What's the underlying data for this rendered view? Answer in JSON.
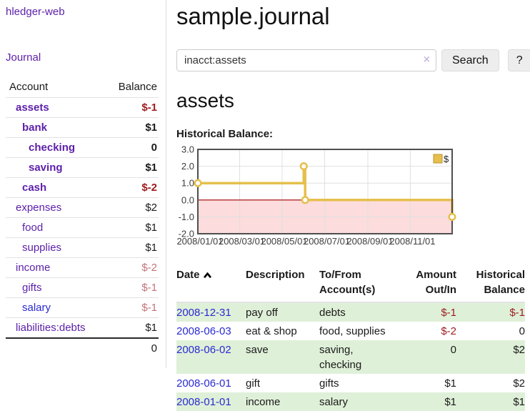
{
  "colors": {
    "link_purple": "#5c1fa9",
    "link_blue": "#2a2ad2",
    "negative_strong": "#9d1d20",
    "negative_soft": "#c2737a",
    "row_stripe_green": "#dff0d8",
    "chart_line": "#e6bf4d",
    "chart_negative_region": "#fcdcdc",
    "chart_zero_line": "#a40000",
    "chart_grid": "#e0e0e0",
    "chart_border": "#4f4f4f"
  },
  "icons": {
    "clear": "×",
    "sort_ascending": "chevron-up"
  },
  "sidebar": {
    "brand": "hledger-web",
    "nav_journal": "Journal",
    "header": {
      "account": "Account",
      "balance": "Balance"
    },
    "accounts": [
      {
        "name": "assets",
        "balance": "$-1"
      },
      {
        "name": "bank",
        "balance": "$1"
      },
      {
        "name": "checking",
        "balance": "0"
      },
      {
        "name": "saving",
        "balance": "$1"
      },
      {
        "name": "cash",
        "balance": "$-2"
      },
      {
        "name": "expenses",
        "balance": "$2"
      },
      {
        "name": "food",
        "balance": "$1"
      },
      {
        "name": "supplies",
        "balance": "$1"
      },
      {
        "name": "income",
        "balance": "$-2"
      },
      {
        "name": "gifts",
        "balance": "$-1"
      },
      {
        "name": "salary",
        "balance": "$-1"
      },
      {
        "name": "liabilities:debts",
        "balance": "$1"
      }
    ],
    "total": "0"
  },
  "main": {
    "title": "sample.journal",
    "search": {
      "value": "inacct:assets",
      "clear_icon": "×",
      "button_label": "Search",
      "help_label": "?"
    },
    "account_title": "assets",
    "chart_label": "Historical Balance:"
  },
  "chart_data": {
    "type": "line",
    "step": true,
    "title": "Historical Balance",
    "series": [
      {
        "name": "$",
        "color": "#e6bf4d",
        "points": [
          [
            "2008-01-01",
            1
          ],
          [
            "2008-06-01",
            2
          ],
          [
            "2008-06-03",
            0
          ],
          [
            "2008-12-31",
            -1
          ]
        ]
      }
    ],
    "ylim": [
      -2,
      3
    ],
    "yticks": [
      3.0,
      2.0,
      1.0,
      0.0,
      -1.0,
      -2.0
    ],
    "xtick_labels": [
      "2008/01/01",
      "2008/03/01",
      "2008/05/01",
      "2008/07/01",
      "2008/09/01",
      "2008/11/01"
    ],
    "grid": true,
    "legend_position": "top-right",
    "negative_region_below": 0
  },
  "register": {
    "headers": {
      "date": "Date",
      "description": "Description",
      "accounts": "To/From Account(s)",
      "amount": "Amount Out/In",
      "balance": "Historical Balance"
    },
    "rows": [
      {
        "date": "2008-12-31",
        "description": "pay off",
        "accounts": "debts",
        "amount": "$-1",
        "balance": "$-1"
      },
      {
        "date": "2008-06-03",
        "description": "eat & shop",
        "accounts": "food, supplies",
        "amount": "$-2",
        "balance": "0"
      },
      {
        "date": "2008-06-02",
        "description": "save",
        "accounts": "saving, checking",
        "amount": "0",
        "balance": "$2"
      },
      {
        "date": "2008-06-01",
        "description": "gift",
        "accounts": "gifts",
        "amount": "$1",
        "balance": "$2"
      },
      {
        "date": "2008-01-01",
        "description": "income",
        "accounts": "salary",
        "amount": "$1",
        "balance": "$1"
      }
    ]
  }
}
